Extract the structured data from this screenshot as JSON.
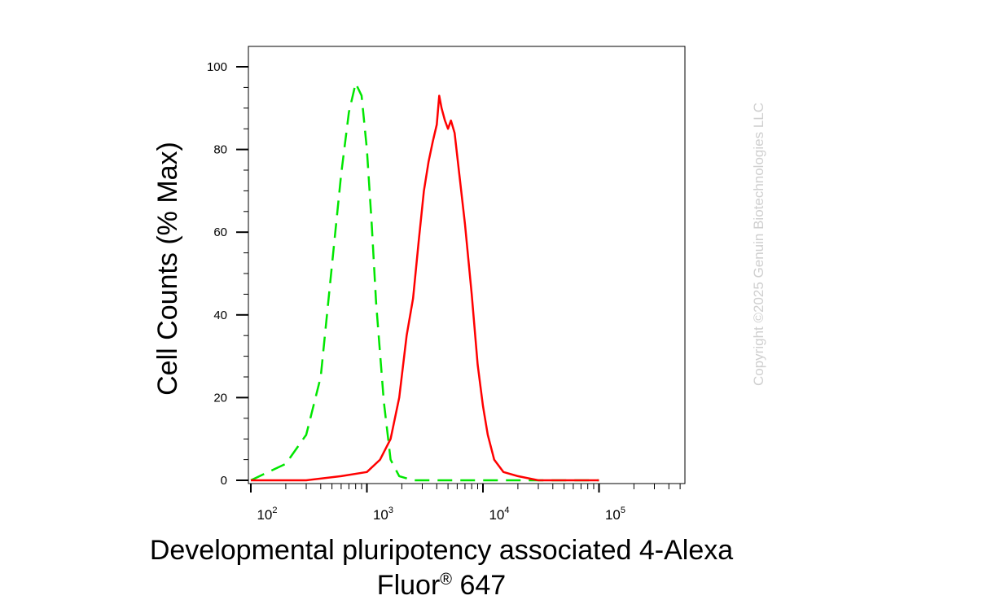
{
  "chart_data": {
    "type": "line",
    "title": "",
    "ylabel": "Cell Counts (% Max)",
    "xlabel_line1": "Developmental pluripotency associated 4-Alexa",
    "xlabel_line2": "Fluor",
    "xlabel_reg": "®",
    "xlabel_line2_tail": " 647",
    "x_scale": "log",
    "xlim": [
      100,
      100000
    ],
    "ylim": [
      0,
      100
    ],
    "yticks": [
      0,
      20,
      40,
      60,
      80,
      100
    ],
    "ytick_labels": [
      "0",
      "20",
      "40",
      "60",
      "80",
      "100"
    ],
    "xticks": [
      {
        "base": "10",
        "exp": "2"
      },
      {
        "base": "10",
        "exp": "3"
      },
      {
        "base": "10",
        "exp": "4"
      },
      {
        "base": "10",
        "exp": "5"
      }
    ],
    "grid": false,
    "series": [
      {
        "color": "#00e600",
        "style": "dashed",
        "points": [
          [
            100,
            0
          ],
          [
            200,
            4
          ],
          [
            300,
            11
          ],
          [
            400,
            25
          ],
          [
            500,
            52
          ],
          [
            600,
            74
          ],
          [
            700,
            89
          ],
          [
            800,
            96
          ],
          [
            900,
            93
          ],
          [
            1000,
            80
          ],
          [
            1100,
            62
          ],
          [
            1200,
            43
          ],
          [
            1400,
            19
          ],
          [
            1600,
            5
          ],
          [
            1900,
            1
          ],
          [
            2500,
            0
          ],
          [
            100000,
            0
          ]
        ]
      },
      {
        "color": "#ff0000",
        "style": "solid",
        "points": [
          [
            100,
            0
          ],
          [
            300,
            0
          ],
          [
            600,
            1
          ],
          [
            1000,
            2
          ],
          [
            1300,
            5
          ],
          [
            1600,
            10
          ],
          [
            1900,
            20
          ],
          [
            2200,
            35
          ],
          [
            2500,
            44
          ],
          [
            2800,
            58
          ],
          [
            3100,
            70
          ],
          [
            3400,
            77
          ],
          [
            3700,
            82
          ],
          [
            4000,
            86
          ],
          [
            4200,
            93
          ],
          [
            4400,
            90
          ],
          [
            4700,
            87
          ],
          [
            5000,
            85
          ],
          [
            5300,
            87
          ],
          [
            5700,
            84
          ],
          [
            6200,
            75
          ],
          [
            7000,
            62
          ],
          [
            8000,
            45
          ],
          [
            9000,
            28
          ],
          [
            10000,
            18
          ],
          [
            11000,
            11
          ],
          [
            12500,
            5
          ],
          [
            15000,
            2
          ],
          [
            20000,
            1
          ],
          [
            30000,
            0
          ],
          [
            100000,
            0
          ]
        ]
      }
    ]
  },
  "watermark": "Copyright ©2025 Genuin Biotechnologies LLC"
}
